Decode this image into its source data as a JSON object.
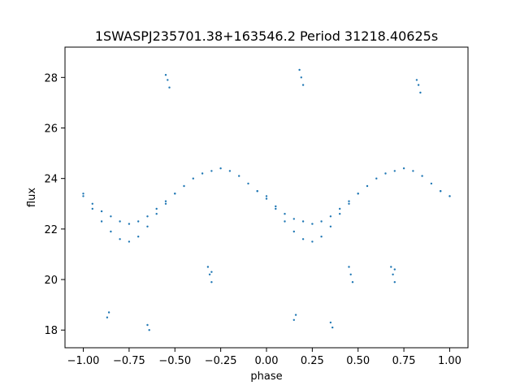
{
  "chart_data": {
    "type": "scatter",
    "title": "1SWASPJ235701.38+163546.2 Period 31218.40625s",
    "xlabel": "phase",
    "ylabel": "flux",
    "xlim": [
      -1.1,
      1.1
    ],
    "ylim": [
      17.3,
      29.2
    ],
    "xticks": [
      -1.0,
      -0.75,
      -0.5,
      -0.25,
      0.0,
      0.25,
      0.5,
      0.75,
      1.0
    ],
    "xtick_labels": [
      "−1.00",
      "−0.75",
      "−0.50",
      "−0.25",
      "0.00",
      "0.25",
      "0.50",
      "0.75",
      "1.00"
    ],
    "yticks": [
      18,
      20,
      22,
      24,
      26,
      28
    ],
    "ytick_labels": [
      "18",
      "20",
      "22",
      "24",
      "26",
      "28"
    ],
    "grid": false,
    "marker_color": "#1f77b4",
    "series": [
      {
        "x": [
          -1.0,
          -0.95,
          -0.9,
          -0.85,
          -0.8,
          -0.75,
          -0.7,
          -0.65,
          -0.6,
          -0.55,
          -0.5,
          -0.45,
          -0.4,
          -0.35,
          -0.3,
          -0.25,
          -0.2,
          -0.15,
          -0.1,
          -0.05,
          0.0,
          0.05,
          0.1,
          0.15,
          0.2,
          0.25,
          0.3,
          0.35,
          0.4,
          0.45,
          0.5,
          0.55,
          0.6,
          0.65,
          0.7,
          0.75,
          0.8,
          0.85,
          0.9,
          0.95,
          1.0
        ],
        "y": [
          23.4,
          23.0,
          22.7,
          22.5,
          22.3,
          22.2,
          22.3,
          22.5,
          22.8,
          23.1,
          23.4,
          23.7,
          24.0,
          24.2,
          24.3,
          24.4,
          24.3,
          24.1,
          23.8,
          23.5,
          23.2,
          22.9,
          22.6,
          22.4,
          22.3,
          22.2,
          22.3,
          22.5,
          22.8,
          23.1,
          23.4,
          23.7,
          24.0,
          24.2,
          24.3,
          24.4,
          24.3,
          24.1,
          23.8,
          23.5,
          23.3
        ]
      },
      {
        "x": [
          -1.0,
          -0.95,
          -0.9,
          -0.85,
          -0.8,
          -0.75,
          -0.7,
          -0.65,
          -0.6,
          -0.55,
          -0.5,
          -0.05,
          0.0,
          0.05,
          0.1,
          0.15,
          0.2,
          0.25,
          0.3,
          0.35,
          0.4,
          0.45,
          0.5,
          0.95,
          1.0
        ],
        "y": [
          23.3,
          22.8,
          22.3,
          21.9,
          21.6,
          21.5,
          21.7,
          22.1,
          22.6,
          23.0,
          23.4,
          23.5,
          23.3,
          22.8,
          22.3,
          21.9,
          21.6,
          21.5,
          21.7,
          22.1,
          22.6,
          23.0,
          23.4,
          23.5,
          23.3
        ]
      },
      {
        "x": [
          -0.55,
          -0.54,
          -0.53,
          -0.32,
          -0.31,
          -0.3,
          -0.3,
          0.18,
          0.19,
          0.2,
          0.45,
          0.46,
          0.47,
          0.68,
          0.69,
          0.7,
          0.7,
          0.82,
          0.83,
          0.84,
          -0.87,
          -0.86,
          0.15,
          0.16,
          -0.65,
          -0.64,
          0.35,
          0.36
        ],
        "y": [
          28.1,
          27.9,
          27.6,
          20.5,
          20.2,
          19.9,
          20.3,
          28.3,
          28.0,
          27.7,
          20.5,
          20.2,
          19.9,
          20.5,
          20.2,
          19.9,
          20.4,
          27.9,
          27.7,
          27.4,
          18.5,
          18.7,
          18.4,
          18.6,
          18.2,
          18.0,
          18.3,
          18.1
        ]
      }
    ]
  }
}
